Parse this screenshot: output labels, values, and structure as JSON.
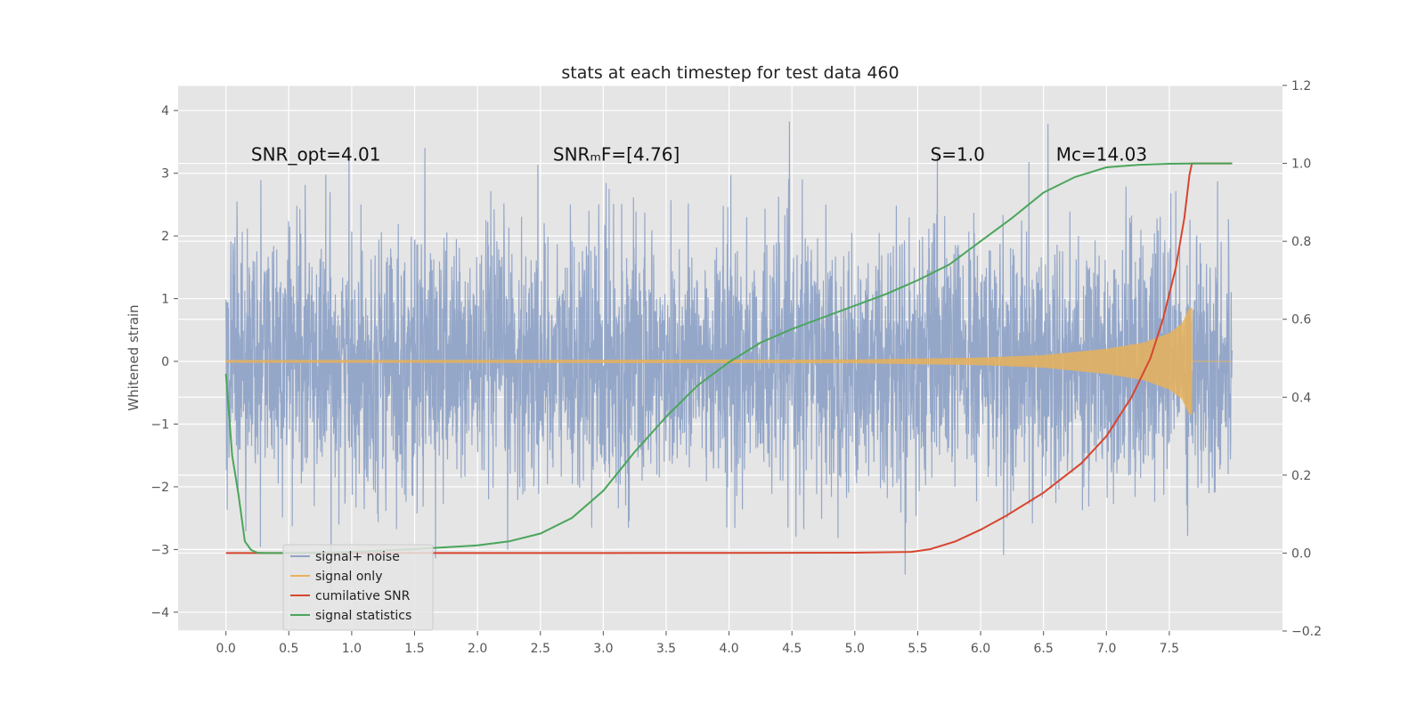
{
  "chart_data": {
    "type": "line",
    "title": "stats at each timestep for test data 460",
    "xlabel": "",
    "ylabel": "Whitened strain",
    "y2label": "",
    "xlim": [
      -0.38,
      8.4
    ],
    "ylim": [
      -4.3,
      4.4
    ],
    "y2lim": [
      -0.2,
      1.2
    ],
    "x_ticks": [
      "0.0",
      "0.5",
      "1.0",
      "1.5",
      "2.0",
      "2.5",
      "3.0",
      "3.5",
      "4.0",
      "4.5",
      "5.0",
      "5.5",
      "6.0",
      "6.5",
      "7.0",
      "7.5"
    ],
    "y_ticks": [
      "4",
      "3",
      "2",
      "1",
      "0",
      "−1",
      "−2",
      "−3",
      "−4"
    ],
    "y2_ticks": [
      "1.2",
      "1.0",
      "0.8",
      "0.6",
      "0.4",
      "0.2",
      "0.0",
      "−0.2"
    ],
    "grid": true,
    "legend_position": "lower-left",
    "annotations": [
      {
        "id": "snr_opt",
        "text": "SNR_opt=4.01",
        "x": 0.2,
        "y": 3.2
      },
      {
        "id": "snr_mf",
        "text": "SNRₘF=[4.76]",
        "x": 2.6,
        "y": 3.2
      },
      {
        "id": "s",
        "text": "S=1.0",
        "x": 5.6,
        "y": 3.2
      },
      {
        "id": "mc",
        "text": "Mc=14.03",
        "x": 6.6,
        "y": 3.2
      }
    ],
    "series": [
      {
        "name": "signal+ noise",
        "axis": "left",
        "color": "#8fa3c7",
        "kind": "noise",
        "x_range": [
          0.0,
          8.0
        ],
        "typical_amplitude": [
          -2.0,
          2.4
        ],
        "peak_max": 4.0,
        "peak_min": -3.8
      },
      {
        "name": "signal only",
        "axis": "left",
        "color": "#e8b15a",
        "kind": "chirp",
        "x_range": [
          0.0,
          7.68
        ],
        "envelope": [
          [
            0.0,
            0.02
          ],
          [
            5.0,
            0.03
          ],
          [
            6.0,
            0.06
          ],
          [
            6.5,
            0.1
          ],
          [
            7.0,
            0.2
          ],
          [
            7.3,
            0.3
          ],
          [
            7.5,
            0.45
          ],
          [
            7.6,
            0.6
          ],
          [
            7.66,
            0.85
          ]
        ]
      },
      {
        "name": "cumilative SNR",
        "axis": "right",
        "color": "#d7452f",
        "x": [
          0.0,
          1.0,
          2.0,
          3.0,
          4.0,
          5.0,
          5.45,
          5.6,
          5.8,
          6.0,
          6.2,
          6.5,
          6.8,
          7.0,
          7.2,
          7.35,
          7.45,
          7.55,
          7.62,
          7.66,
          7.68,
          7.7,
          8.0
        ],
        "values": [
          0.0,
          0.0,
          0.0,
          0.0,
          0.0005,
          0.001,
          0.003,
          0.01,
          0.03,
          0.06,
          0.095,
          0.155,
          0.23,
          0.3,
          0.4,
          0.5,
          0.6,
          0.73,
          0.86,
          0.97,
          1.0,
          1.0,
          1.0
        ]
      },
      {
        "name": "signal statistics",
        "axis": "right",
        "color": "#4aa55b",
        "x": [
          0.0,
          0.05,
          0.1,
          0.15,
          0.2,
          0.25,
          0.3,
          0.5,
          1.0,
          1.5,
          1.75,
          2.0,
          2.25,
          2.5,
          2.75,
          3.0,
          3.25,
          3.5,
          3.75,
          4.0,
          4.25,
          4.5,
          4.75,
          5.0,
          5.25,
          5.5,
          5.75,
          6.0,
          6.25,
          6.5,
          6.75,
          7.0,
          7.25,
          7.5,
          7.75,
          8.0
        ],
        "values": [
          0.46,
          0.25,
          0.15,
          0.03,
          0.008,
          0.001,
          0.0,
          0.0,
          0.003,
          0.01,
          0.015,
          0.02,
          0.03,
          0.05,
          0.09,
          0.16,
          0.26,
          0.35,
          0.43,
          0.49,
          0.54,
          0.575,
          0.605,
          0.635,
          0.665,
          0.7,
          0.74,
          0.8,
          0.86,
          0.925,
          0.965,
          0.99,
          0.996,
          0.999,
          1.0,
          1.0
        ]
      }
    ]
  }
}
